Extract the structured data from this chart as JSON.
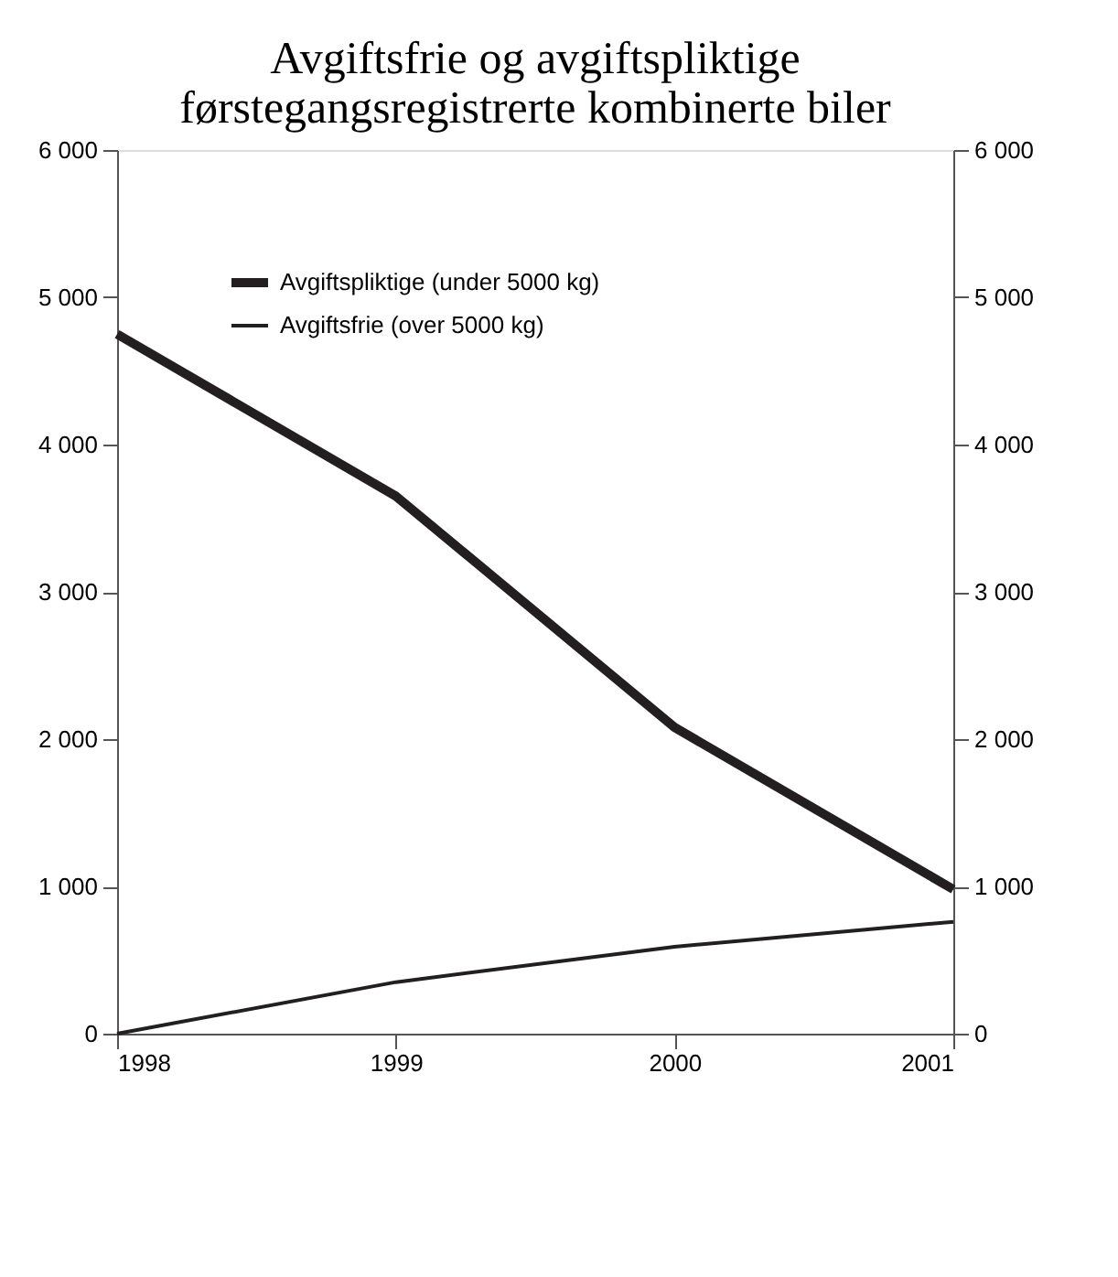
{
  "chart_data": {
    "type": "line",
    "title": [
      "Avgiftsfrie og avgiftspliktige",
      "førstegangsregistrerte kombinerte biler"
    ],
    "x": [
      1998,
      1999,
      2000,
      2001
    ],
    "series": [
      {
        "name": "Avgiftspliktige (under 5000 kg)",
        "color": "#231f20",
        "values": [
          4750,
          3650,
          2080,
          980
        ]
      },
      {
        "name": "Avgiftsfrie (over 5000 kg)",
        "color": "#231f20",
        "values": [
          0,
          350,
          590,
          760
        ]
      }
    ],
    "xlim": [
      1998,
      2001
    ],
    "xticks": [
      1998,
      1999,
      2000,
      2001
    ],
    "ylim": [
      0,
      6000
    ],
    "yticks": [
      {
        "value": 0,
        "label": "0"
      },
      {
        "value": 1000,
        "label": "1 000"
      },
      {
        "value": 2000,
        "label": "2 000"
      },
      {
        "value": 3000,
        "label": "3 000"
      },
      {
        "value": 4000,
        "label": "4 000"
      },
      {
        "value": 5000,
        "label": "5 000"
      },
      {
        "value": 6000,
        "label": "6 000"
      }
    ],
    "y2lim": [
      0,
      6000
    ],
    "y2ticks": [
      {
        "value": 0,
        "label": "0"
      },
      {
        "value": 1000,
        "label": "1 000"
      },
      {
        "value": 2000,
        "label": "2 000"
      },
      {
        "value": 3000,
        "label": "3 000"
      },
      {
        "value": 4000,
        "label": "4 000"
      },
      {
        "value": 5000,
        "label": "5 000"
      },
      {
        "value": 6000,
        "label": "6 000"
      }
    ],
    "grid": false,
    "legend": "top left",
    "marker": "none",
    "line_style": "solid"
  }
}
